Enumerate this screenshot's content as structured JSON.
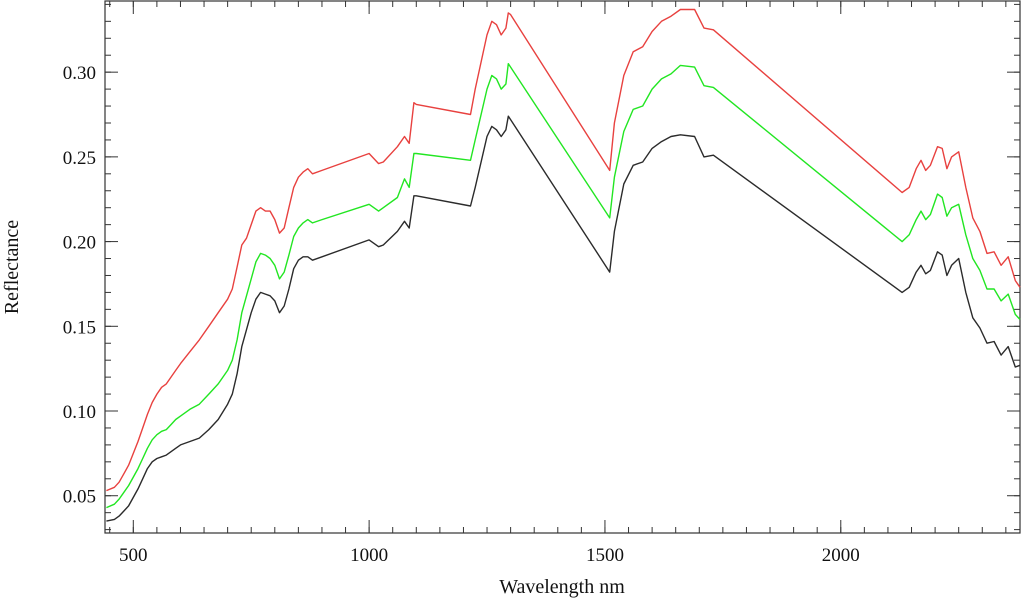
{
  "chart_data": {
    "type": "line",
    "xlabel": "Wavelength nm",
    "ylabel": "Reflectance",
    "xlim": [
      440,
      2380
    ],
    "ylim": [
      0.028,
      0.342
    ],
    "x_ticks": [
      500,
      1000,
      1500,
      2000
    ],
    "x_tick_labels": [
      "500",
      "1000",
      "1500",
      "2000"
    ],
    "x_minor_step": 50,
    "y_ticks": [
      0.05,
      0.1,
      0.15,
      0.2,
      0.25,
      0.3
    ],
    "y_tick_labels": [
      "0.05",
      "0.10",
      "0.15",
      "0.20",
      "0.25",
      "0.30"
    ],
    "y_minor_step": 0.01,
    "grid": false,
    "legend": "none",
    "series": [
      {
        "color": "#e8413f",
        "x": [
          443,
          460,
          470,
          480,
          490,
          500,
          510,
          520,
          530,
          540,
          550,
          560,
          570,
          580,
          590,
          600,
          620,
          640,
          660,
          680,
          700,
          710,
          720,
          730,
          740,
          750,
          760,
          770,
          780,
          790,
          800,
          810,
          820,
          830,
          840,
          850,
          860,
          870,
          880,
          900,
          1000,
          1020,
          1030,
          1060,
          1075,
          1085,
          1095,
          1100,
          1215,
          1225,
          1250,
          1260,
          1270,
          1280,
          1290,
          1295,
          1300,
          1510,
          1520,
          1540,
          1560,
          1580,
          1600,
          1620,
          1640,
          1660,
          1690,
          1710,
          1730,
          2130,
          2145,
          2160,
          2170,
          2180,
          2190,
          2205,
          2215,
          2225,
          2235,
          2250,
          2265,
          2280,
          2295,
          2310,
          2325,
          2340,
          2355,
          2370,
          2380
        ],
        "y": [
          0.053,
          0.055,
          0.058,
          0.063,
          0.068,
          0.075,
          0.082,
          0.09,
          0.098,
          0.105,
          0.11,
          0.114,
          0.116,
          0.12,
          0.124,
          0.128,
          0.135,
          0.142,
          0.15,
          0.158,
          0.166,
          0.172,
          0.185,
          0.198,
          0.202,
          0.21,
          0.218,
          0.22,
          0.218,
          0.218,
          0.213,
          0.205,
          0.208,
          0.22,
          0.232,
          0.238,
          0.241,
          0.243,
          0.24,
          0.242,
          0.252,
          0.246,
          0.247,
          0.256,
          0.262,
          0.258,
          0.282,
          0.281,
          0.275,
          0.29,
          0.322,
          0.33,
          0.328,
          0.322,
          0.326,
          0.335,
          0.334,
          0.242,
          0.27,
          0.298,
          0.312,
          0.315,
          0.324,
          0.33,
          0.333,
          0.337,
          0.337,
          0.326,
          0.325,
          0.229,
          0.232,
          0.243,
          0.248,
          0.242,
          0.245,
          0.256,
          0.255,
          0.243,
          0.25,
          0.253,
          0.232,
          0.214,
          0.206,
          0.193,
          0.194,
          0.186,
          0.191,
          0.177,
          0.173
        ]
      },
      {
        "color": "#22e622",
        "x": [
          443,
          460,
          470,
          480,
          490,
          500,
          510,
          520,
          530,
          540,
          550,
          560,
          570,
          580,
          590,
          600,
          620,
          640,
          660,
          680,
          700,
          710,
          720,
          730,
          740,
          750,
          760,
          770,
          780,
          790,
          800,
          810,
          820,
          830,
          840,
          850,
          860,
          870,
          880,
          900,
          1000,
          1020,
          1030,
          1060,
          1075,
          1085,
          1095,
          1100,
          1215,
          1225,
          1250,
          1260,
          1270,
          1280,
          1290,
          1295,
          1300,
          1510,
          1520,
          1540,
          1560,
          1580,
          1600,
          1620,
          1640,
          1660,
          1690,
          1710,
          1730,
          2130,
          2145,
          2160,
          2170,
          2180,
          2190,
          2205,
          2215,
          2225,
          2235,
          2250,
          2265,
          2280,
          2295,
          2310,
          2325,
          2340,
          2355,
          2370,
          2380
        ],
        "y": [
          0.043,
          0.045,
          0.048,
          0.052,
          0.056,
          0.061,
          0.066,
          0.072,
          0.078,
          0.083,
          0.086,
          0.088,
          0.089,
          0.092,
          0.095,
          0.097,
          0.101,
          0.104,
          0.11,
          0.116,
          0.124,
          0.13,
          0.142,
          0.158,
          0.168,
          0.178,
          0.188,
          0.193,
          0.192,
          0.19,
          0.186,
          0.178,
          0.182,
          0.192,
          0.203,
          0.208,
          0.211,
          0.213,
          0.211,
          0.213,
          0.222,
          0.218,
          0.22,
          0.226,
          0.237,
          0.232,
          0.252,
          0.252,
          0.248,
          0.26,
          0.29,
          0.298,
          0.296,
          0.29,
          0.293,
          0.305,
          0.303,
          0.214,
          0.238,
          0.265,
          0.278,
          0.28,
          0.29,
          0.296,
          0.299,
          0.304,
          0.303,
          0.292,
          0.291,
          0.2,
          0.204,
          0.213,
          0.218,
          0.213,
          0.216,
          0.228,
          0.226,
          0.215,
          0.22,
          0.222,
          0.204,
          0.19,
          0.183,
          0.172,
          0.172,
          0.165,
          0.169,
          0.157,
          0.154
        ]
      },
      {
        "color": "#2b2b2b",
        "x": [
          443,
          460,
          470,
          480,
          490,
          500,
          510,
          520,
          530,
          540,
          550,
          560,
          570,
          580,
          590,
          600,
          620,
          640,
          660,
          680,
          700,
          710,
          720,
          730,
          740,
          750,
          760,
          770,
          780,
          790,
          800,
          810,
          820,
          830,
          840,
          850,
          860,
          870,
          880,
          900,
          1000,
          1020,
          1030,
          1060,
          1075,
          1085,
          1095,
          1100,
          1215,
          1225,
          1250,
          1260,
          1270,
          1280,
          1290,
          1295,
          1300,
          1510,
          1520,
          1540,
          1560,
          1580,
          1600,
          1620,
          1640,
          1660,
          1690,
          1710,
          1730,
          2130,
          2145,
          2160,
          2170,
          2180,
          2190,
          2205,
          2215,
          2225,
          2235,
          2250,
          2265,
          2280,
          2295,
          2310,
          2325,
          2340,
          2355,
          2370,
          2380
        ],
        "y": [
          0.035,
          0.036,
          0.038,
          0.041,
          0.044,
          0.049,
          0.054,
          0.06,
          0.066,
          0.07,
          0.072,
          0.073,
          0.074,
          0.076,
          0.078,
          0.08,
          0.082,
          0.084,
          0.089,
          0.095,
          0.104,
          0.11,
          0.122,
          0.138,
          0.148,
          0.158,
          0.166,
          0.17,
          0.169,
          0.168,
          0.165,
          0.158,
          0.162,
          0.172,
          0.184,
          0.189,
          0.191,
          0.191,
          0.189,
          0.191,
          0.201,
          0.197,
          0.198,
          0.206,
          0.212,
          0.208,
          0.227,
          0.227,
          0.221,
          0.232,
          0.262,
          0.268,
          0.266,
          0.262,
          0.266,
          0.274,
          0.272,
          0.182,
          0.206,
          0.234,
          0.245,
          0.247,
          0.255,
          0.259,
          0.262,
          0.263,
          0.262,
          0.25,
          0.251,
          0.17,
          0.173,
          0.182,
          0.186,
          0.181,
          0.183,
          0.194,
          0.192,
          0.18,
          0.186,
          0.19,
          0.17,
          0.155,
          0.149,
          0.14,
          0.141,
          0.133,
          0.138,
          0.126,
          0.127
        ]
      }
    ]
  }
}
